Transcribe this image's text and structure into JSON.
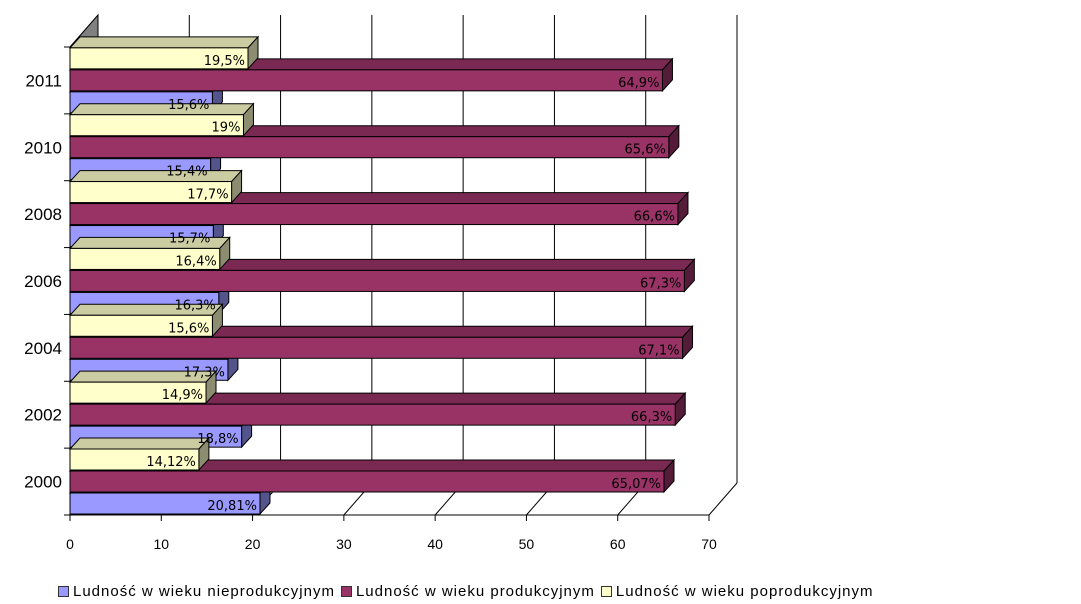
{
  "chart_data": {
    "type": "bar",
    "orientation": "horizontal",
    "style": "3d",
    "categories": [
      "2000",
      "2002",
      "2004",
      "2006",
      "2008",
      "2010",
      "2011"
    ],
    "xlim": [
      0,
      70
    ],
    "x_ticks": [
      "0",
      "10",
      "20",
      "30",
      "40",
      "50",
      "60",
      "70"
    ],
    "grid": true,
    "legend_position": "bottom",
    "series": [
      {
        "name": "Ludność w wieku nieprodukcyjnym",
        "color": "#9999ff",
        "values": [
          20.81,
          18.8,
          17.3,
          16.3,
          15.7,
          15.4,
          15.6
        ],
        "labels": [
          "20,81%",
          "18,8%",
          "17,3%",
          "16,3%",
          "15,7%",
          "15,4%",
          "15,6%"
        ]
      },
      {
        "name": "Ludność w wieku produkcyjnym",
        "color": "#993366",
        "values": [
          65.07,
          66.3,
          67.1,
          67.3,
          66.6,
          65.6,
          64.9
        ],
        "labels": [
          "65,07%",
          "66,3%",
          "67,1%",
          "67,3%",
          "66,6%",
          "65,6%",
          "64,9%"
        ]
      },
      {
        "name": "Ludność w wieku poprodukcyjnym",
        "color": "#ffffcc",
        "values": [
          14.12,
          14.9,
          15.6,
          16.4,
          17.7,
          19,
          19.5
        ],
        "labels": [
          "14,12%",
          "14,9%",
          "15,6%",
          "16,4%",
          "17,7%",
          "19%",
          "19,5%"
        ]
      }
    ]
  }
}
